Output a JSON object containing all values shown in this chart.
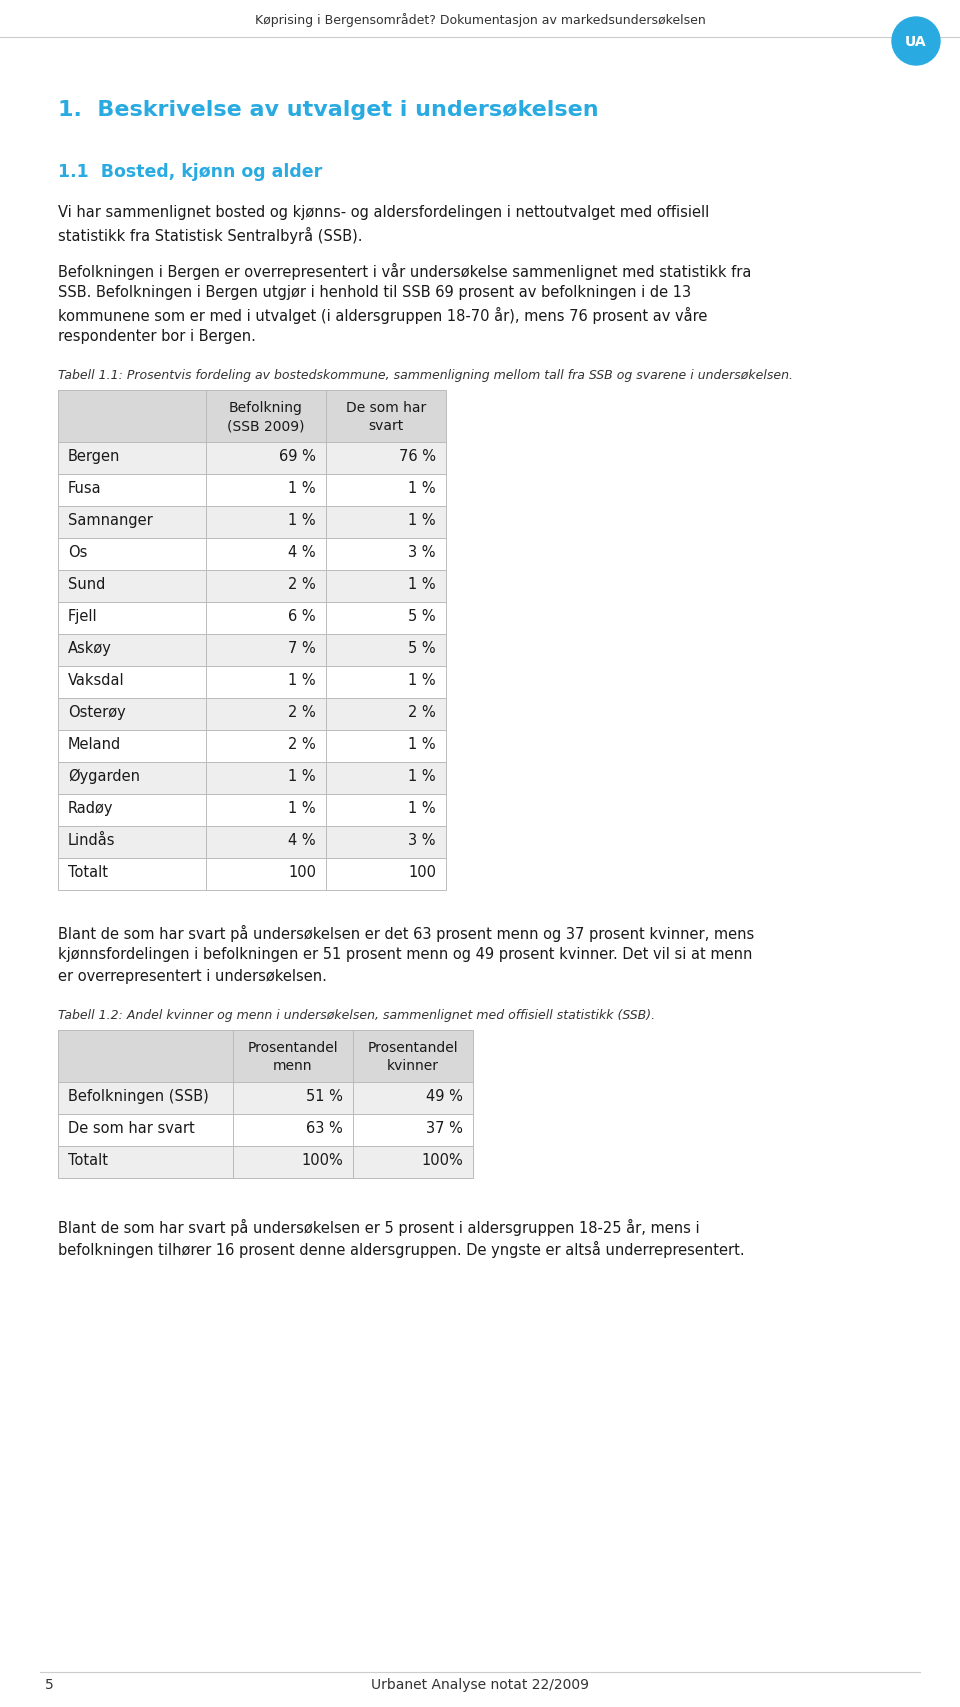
{
  "header_text": "Køprising i Bergensområdet? Dokumentasjon av markedsundersøkelsen",
  "ua_circle_color": "#29ABE2",
  "ua_text": "UA",
  "section_title": "1.  Beskrivelse av utvalget i undersøkelsen",
  "section_title_color": "#29ABE2",
  "subsection_title": "1.1  Bosted, kjønn og alder",
  "subsection_title_color": "#29ABE2",
  "para1_lines": [
    "Vi har sammenlignet bosted og kjønns- og aldersfordelingen i nettoutvalget med offisiell",
    "statistikk fra Statistisk Sentralbyrå (SSB)."
  ],
  "para2_lines": [
    "Befolkningen i Bergen er overrepresentert i vår undersøkelse sammenlignet med statistikk fra",
    "SSB. Befolkningen i Bergen utgjør i henhold til SSB 69 prosent av befolkningen i de 13",
    "kommunene som er med i utvalget (i aldersgruppen 18-70 år), mens 76 prosent av våre",
    "respondenter bor i Bergen."
  ],
  "table1_caption": "Tabell 1.1: Prosentvis fordeling av bostedskommune, sammenligning mellom tall fra SSB og svarene i undersøkelsen.",
  "table1_header_col1": "Befolkning\n(SSB 2009)",
  "table1_header_col2": "De som har\nsvart",
  "table1_rows": [
    [
      "Bergen",
      "69 %",
      "76 %"
    ],
    [
      "Fusa",
      "1 %",
      "1 %"
    ],
    [
      "Samnanger",
      "1 %",
      "1 %"
    ],
    [
      "Os",
      "4 %",
      "3 %"
    ],
    [
      "Sund",
      "2 %",
      "1 %"
    ],
    [
      "Fjell",
      "6 %",
      "5 %"
    ],
    [
      "Askøy",
      "7 %",
      "5 %"
    ],
    [
      "Vaksdal",
      "1 %",
      "1 %"
    ],
    [
      "Osterøy",
      "2 %",
      "2 %"
    ],
    [
      "Meland",
      "2 %",
      "1 %"
    ],
    [
      "Øygarden",
      "1 %",
      "1 %"
    ],
    [
      "Radøy",
      "1 %",
      "1 %"
    ],
    [
      "Lindås",
      "4 %",
      "3 %"
    ],
    [
      "Totalt",
      "100",
      "100"
    ]
  ],
  "para3_lines": [
    "Blant de som har svart på undersøkelsen er det 63 prosent menn og 37 prosent kvinner, mens",
    "kjønnsfordelingen i befolkningen er 51 prosent menn og 49 prosent kvinner. Det vil si at menn",
    "er overrepresentert i undersøkelsen."
  ],
  "table2_caption": "Tabell 1.2: Andel kvinner og menn i undersøkelsen, sammenlignet med offisiell statistikk (SSB).",
  "table2_header_col1": "Prosentandel\nmenn",
  "table2_header_col2": "Prosentandel\nkvinner",
  "table2_rows": [
    [
      "Befolkningen (SSB)",
      "51 %",
      "49 %"
    ],
    [
      "De som har svart",
      "63 %",
      "37 %"
    ],
    [
      "Totalt",
      "100%",
      "100%"
    ]
  ],
  "para4_lines": [
    "Blant de som har svart på undersøkelsen er 5 prosent i aldersgruppen 18-25 år, mens i",
    "befolkningen tilhører 16 prosent denne aldersgruppen. De yngste er altså underrepresentert."
  ],
  "footer_page": "5",
  "footer_center": "Urbanet Analyse notat 22/2009",
  "bg_color": "#ffffff",
  "text_color": "#1a1a1a",
  "gray_text": "#444444",
  "table_header_bg": "#d8d8d8",
  "table_alt_bg": "#eeeeee",
  "table_white_bg": "#ffffff",
  "table_border": "#bbbbbb",
  "header_border": "#cccccc"
}
